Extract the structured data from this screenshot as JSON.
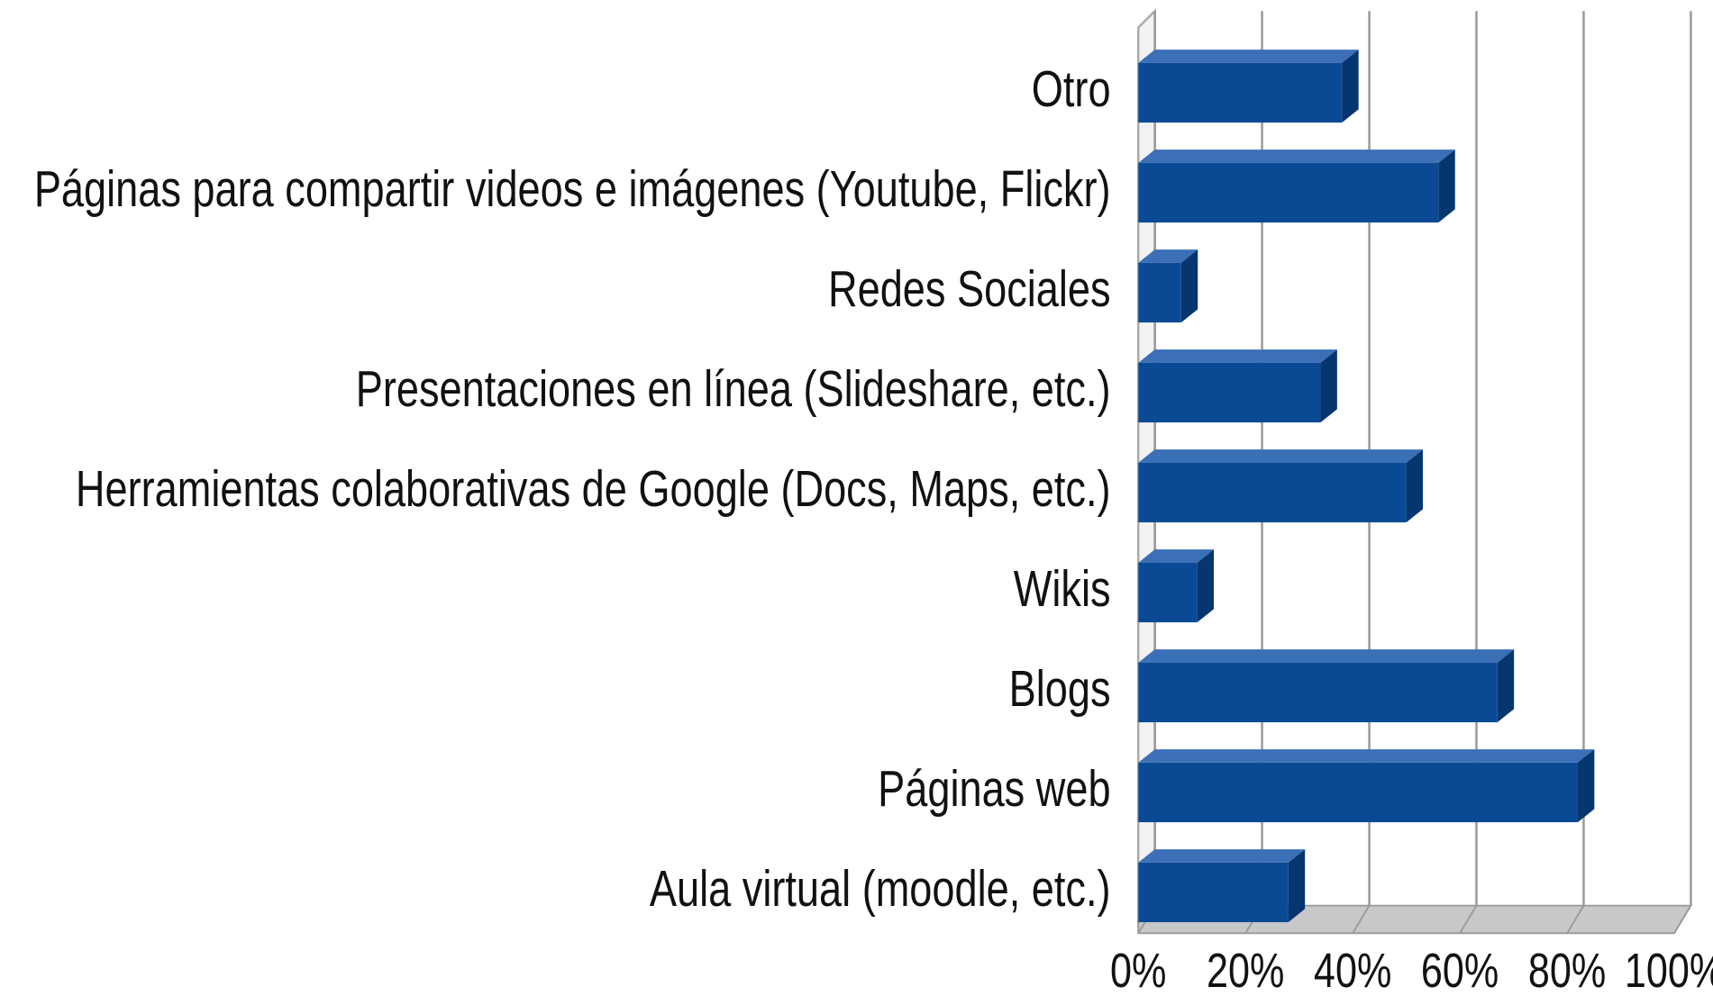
{
  "chart_data": {
    "type": "bar",
    "orientation": "horizontal",
    "categories": [
      "Otro",
      "Páginas para compartir videos e imágenes (Youtube, Flickr)",
      "Redes Sociales",
      "Presentaciones en línea (Slideshare, etc.)",
      "Herramientas colaborativas de Google (Docs, Maps, etc.)",
      "Wikis",
      "Blogs",
      "Páginas web",
      "Aula virtual (moodle, etc.)"
    ],
    "values": [
      38,
      56,
      8,
      34,
      50,
      11,
      67,
      82,
      28
    ],
    "color": "#0a4a94",
    "xlim": [
      0,
      100
    ],
    "xticks": [
      {
        "value": 0,
        "label": "0%"
      },
      {
        "value": 20,
        "label": "20%"
      },
      {
        "value": 40,
        "label": "40%"
      },
      {
        "value": 60,
        "label": "60%"
      },
      {
        "value": 80,
        "label": "80%"
      },
      {
        "value": 100,
        "label": "100%"
      }
    ],
    "grid": true
  }
}
